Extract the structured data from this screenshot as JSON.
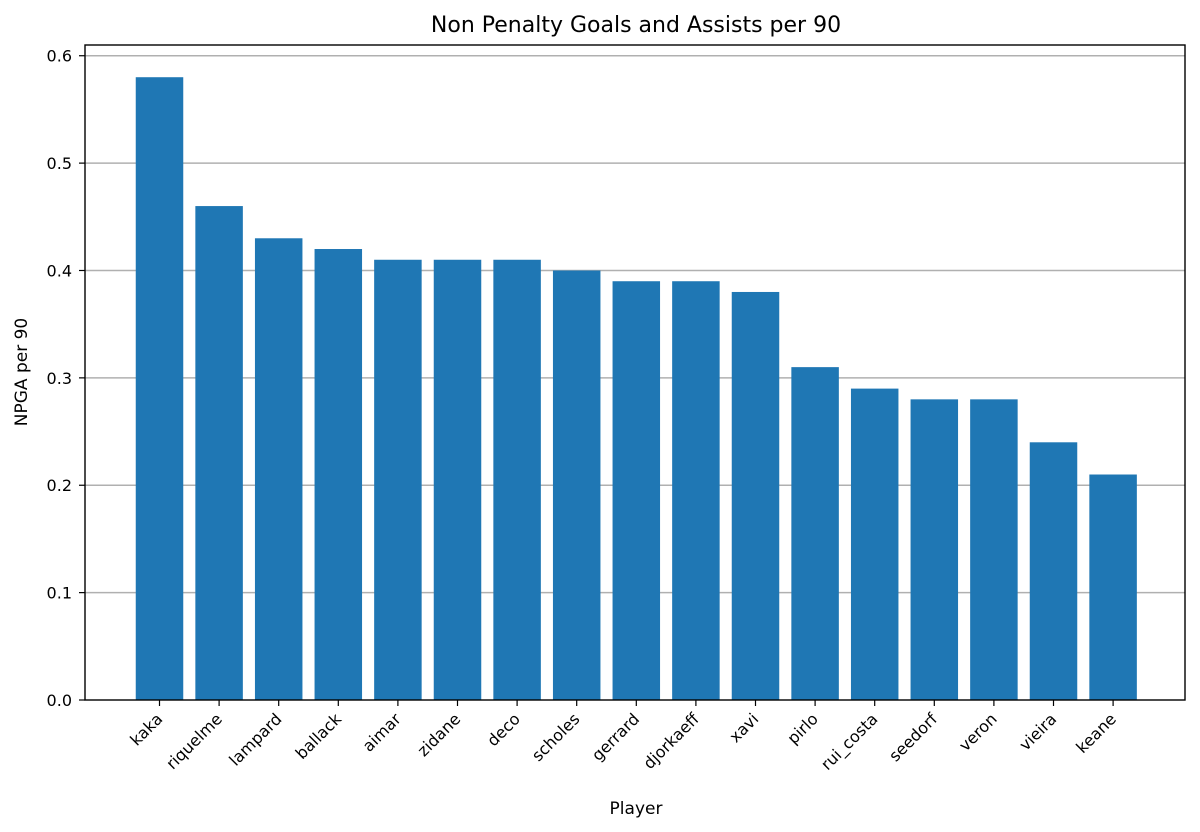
{
  "chart_data": {
    "type": "bar",
    "title": "Non Penalty Goals and Assists per 90",
    "xlabel": "Player",
    "ylabel": "NPGA per 90",
    "categories": [
      "kaka",
      "riquelme",
      "lampard",
      "ballack",
      "aimar",
      "zidane",
      "deco",
      "scholes",
      "gerrard",
      "djorkaeff",
      "xavi",
      "pirlo",
      "rui_costa",
      "seedorf",
      "veron",
      "vieira",
      "keane"
    ],
    "values": [
      0.58,
      0.46,
      0.43,
      0.42,
      0.41,
      0.41,
      0.41,
      0.4,
      0.39,
      0.39,
      0.38,
      0.31,
      0.29,
      0.28,
      0.28,
      0.24,
      0.21
    ],
    "ylim": [
      0,
      0.61
    ],
    "yticks": [
      0.0,
      0.1,
      0.2,
      0.3,
      0.4,
      0.5,
      0.6
    ],
    "ytick_labels": [
      "0.0",
      "0.1",
      "0.2",
      "0.3",
      "0.4",
      "0.5",
      "0.6"
    ],
    "grid": "y",
    "bar_color": "#1f77b4",
    "grid_color": "#b0b0b0"
  }
}
